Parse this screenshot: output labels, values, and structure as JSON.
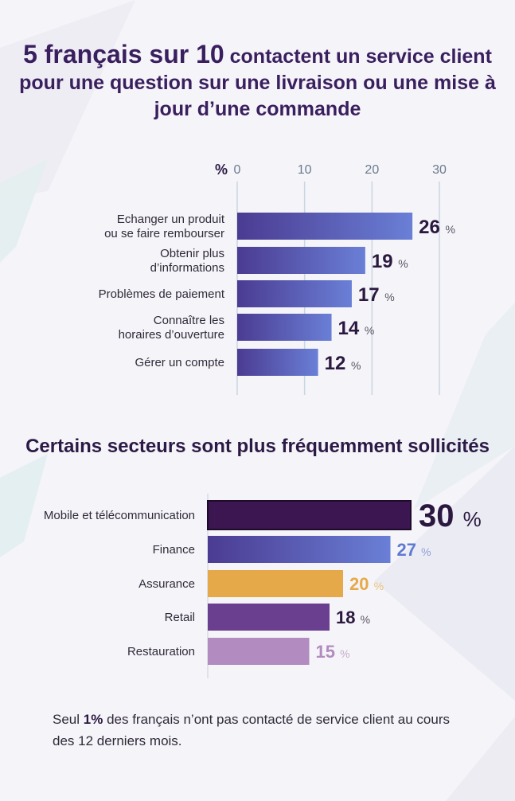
{
  "title": {
    "part1": "5 français sur 10",
    "part2": "contactent un service client pour une question sur une livraison ou une mise à jour d’une commande"
  },
  "section2_title": "Certains secteurs sont plus fréquemment sollicités",
  "footnote": {
    "prefix": "Seul",
    "bold": "1%",
    "suffix": "des français n’ont pas contacté de service client au cours des 12 derniers mois."
  },
  "colors": {
    "bar_gradient_start": "#4b3b92",
    "bar_gradient_end": "#6a7fd6",
    "dark_purple": "#3c1650",
    "blue": "#5f7ad3",
    "orange": "#e6a949",
    "purple": "#6b3f8f",
    "lilac": "#b28bc0"
  },
  "chart_data": [
    {
      "type": "bar",
      "orientation": "horizontal",
      "axis_unit_label": "%",
      "xlim": [
        0,
        30
      ],
      "xticks": [
        0,
        10,
        20,
        30
      ],
      "grid": true,
      "categories": [
        "Echanger un produit ou se faire rembourser",
        "Obtenir plus d’informations",
        "Problèmes de paiement",
        "Connaître les horaires d’ouverture",
        "Gérer un compte"
      ],
      "values": [
        26,
        19,
        17,
        14,
        12
      ],
      "value_suffix": "%"
    },
    {
      "type": "bar",
      "orientation": "horizontal",
      "xlim": [
        0,
        30
      ],
      "grid": false,
      "categories": [
        "Mobile et télécommunication",
        "Finance",
        "Assurance",
        "Retail",
        "Restauration"
      ],
      "values": [
        30,
        27,
        20,
        18,
        15
      ],
      "value_suffix": "%"
    }
  ]
}
